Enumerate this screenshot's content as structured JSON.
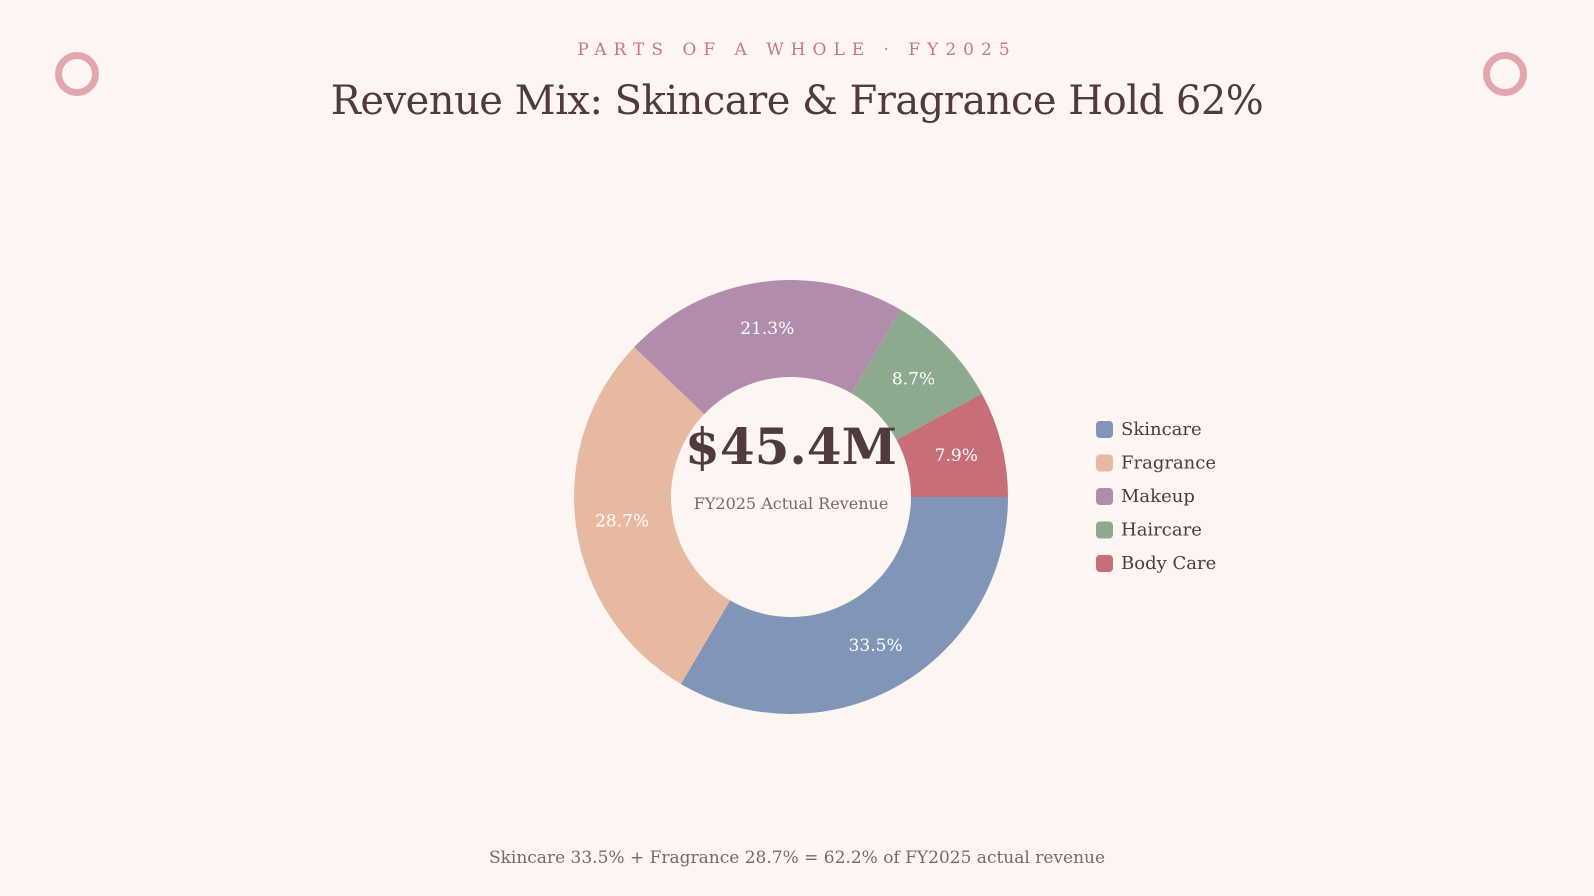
{
  "header": {
    "eyebrow": "PARTS OF A WHOLE · FY2025",
    "title": "Revenue Mix: Skincare & Fragrance Hold 62%"
  },
  "footer": {
    "note": "Skincare 33.5% + Fragrance 28.7% = 62.2% of FY2025 actual revenue"
  },
  "colors": {
    "background": "#fdf5f1",
    "accent_ring": "#e2a7ac",
    "text_dark": "#4f3a3d"
  },
  "chart_data": {
    "type": "pie",
    "variant": "donut",
    "title": "Revenue Mix: Skincare & Fragrance Hold 62%",
    "center_value": "$45.4M",
    "center_caption": "FY2025 Actual Revenue",
    "legend_position": "right",
    "categories": [
      "Skincare",
      "Fragrance",
      "Makeup",
      "Haircare",
      "Body Care"
    ],
    "values": [
      33.5,
      28.7,
      21.3,
      8.7,
      7.9
    ],
    "labels": [
      "33.5%",
      "28.7%",
      "21.3%",
      "8.7%",
      "7.9%"
    ],
    "colors": [
      "#8195b9",
      "#e8b9a1",
      "#b28dab",
      "#8daa8e",
      "#c86e78"
    ]
  }
}
